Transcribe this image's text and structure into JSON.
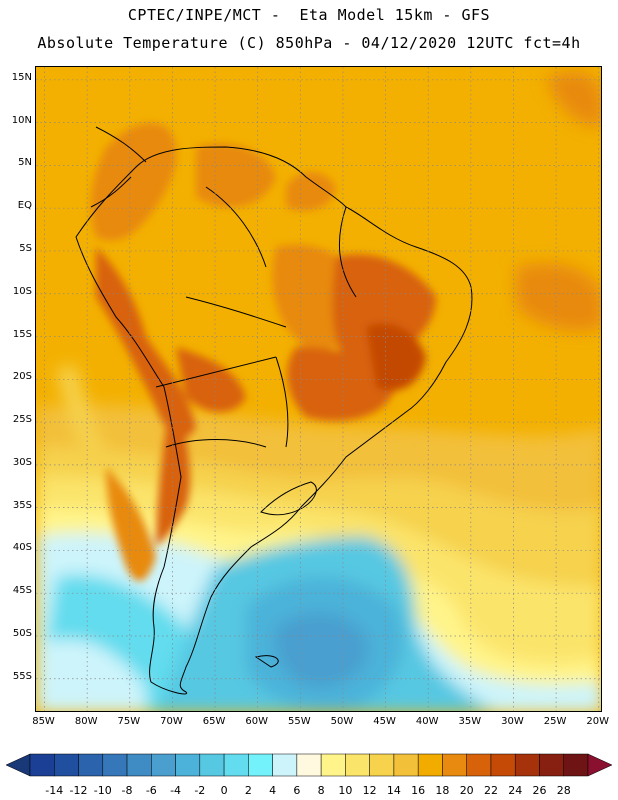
{
  "header": {
    "line1": "CPTEC/INPE/MCT -  Eta Model 15km - GFS",
    "line2": "Absolute Temperature (C) 850hPa - 04/12/2020 12UTC fct=4h"
  },
  "map": {
    "lon_range": [
      -86,
      -19.5
    ],
    "lat_range": [
      -59,
      16.5
    ],
    "lat_ticks": [
      "15N",
      "10N",
      "5N",
      "EQ",
      "5S",
      "10S",
      "15S",
      "20S",
      "25S",
      "30S",
      "35S",
      "40S",
      "45S",
      "50S",
      "55S"
    ],
    "lon_ticks": [
      "85W",
      "80W",
      "75W",
      "70W",
      "65W",
      "60W",
      "55W",
      "50W",
      "45W",
      "40W",
      "35W",
      "30W",
      "25W",
      "20W"
    ]
  },
  "colorbar": {
    "labels": [
      "-14",
      "-12",
      "-10",
      "-8",
      "-6",
      "-4",
      "-2",
      "0",
      "2",
      "4",
      "6",
      "8",
      "10",
      "12",
      "14",
      "16",
      "18",
      "20",
      "22",
      "24",
      "26",
      "28"
    ],
    "colors": [
      "#1b3f94",
      "#214f9f",
      "#2b63ad",
      "#3577b8",
      "#3f8bc3",
      "#4a9fcf",
      "#4cb2d9",
      "#56c8e2",
      "#62dcee",
      "#74f2fb",
      "#cdf4fb",
      "#fff9e0",
      "#fff48a",
      "#fbe46a",
      "#f6d24d",
      "#f3c03a",
      "#f2ac00",
      "#e88a10",
      "#d8620a",
      "#c44a06",
      "#a5320a",
      "#872010",
      "#6e1414"
    ],
    "under_color": "#183877",
    "over_color": "#8a1030"
  }
}
